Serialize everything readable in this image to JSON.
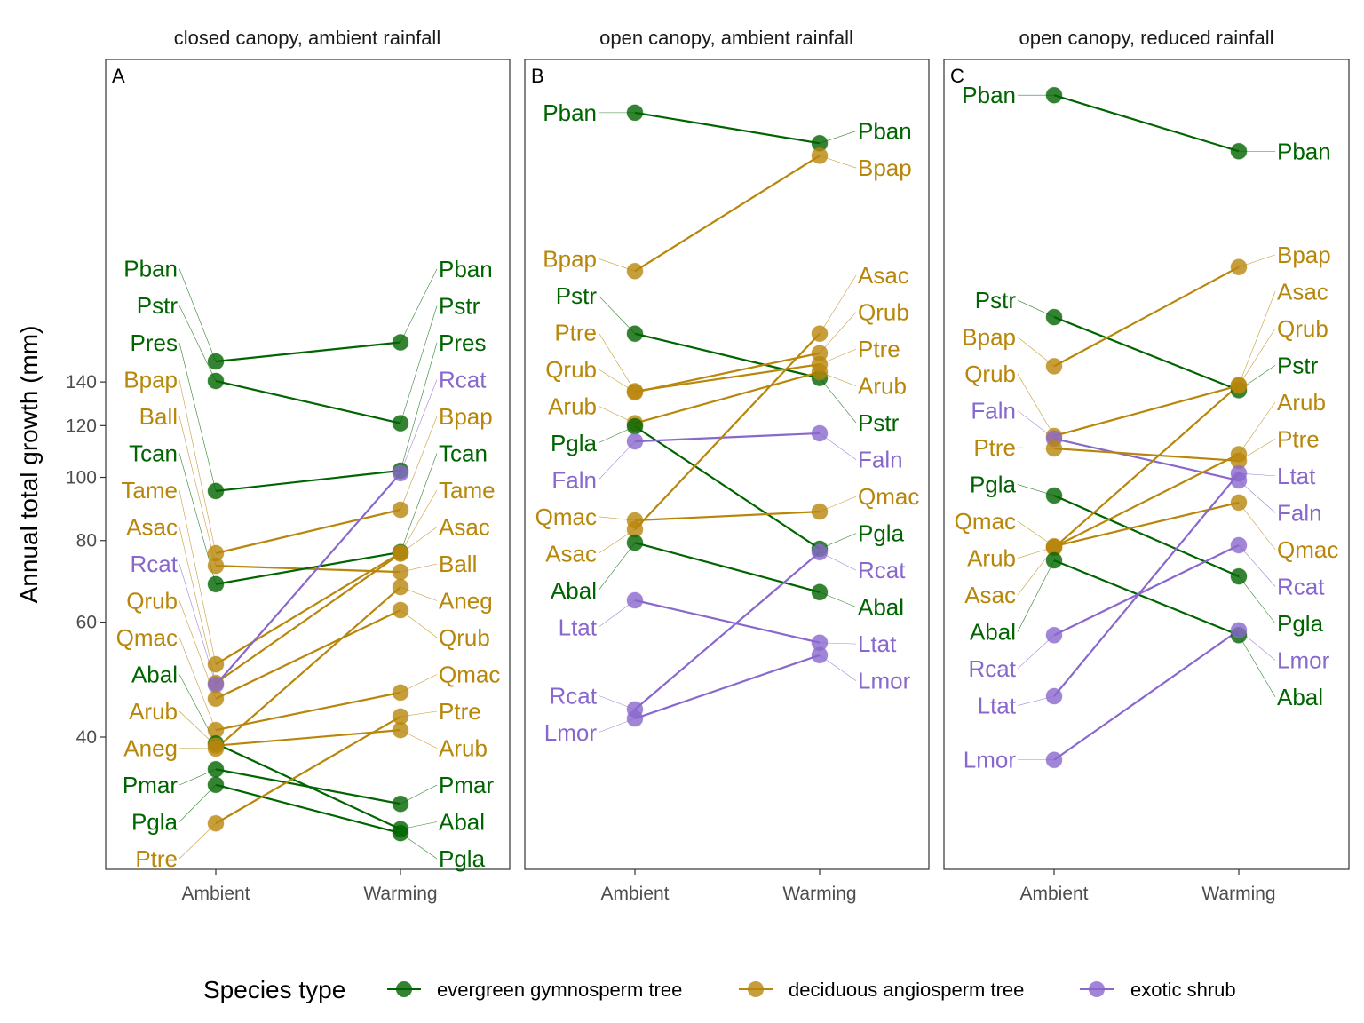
{
  "chart_data": {
    "type": "line",
    "subtype": "slopegraph",
    "ylabel": "Annual total growth (mm)",
    "yscale": "log",
    "yticks": [
      40,
      60,
      80,
      100,
      120,
      140
    ],
    "x": [
      "Ambient",
      "Warming"
    ],
    "grid": false,
    "legend": {
      "title": "Species type",
      "placement": "bottom",
      "entries": [
        {
          "key": "evergreen",
          "label": "evergreen gymnosperm tree",
          "color": "#006400"
        },
        {
          "key": "deciduous",
          "label": "deciduous angiosperm tree",
          "color": "#B8860B"
        },
        {
          "key": "shrub",
          "label": "exotic shrub",
          "color": "#8968CD"
        }
      ]
    },
    "panels": [
      {
        "tag": "A",
        "title": "closed canopy, ambient rainfall",
        "series": [
          {
            "name": "Pban",
            "type": "evergreen",
            "values": [
              150.5,
              161
            ]
          },
          {
            "name": "Pstr",
            "type": "evergreen",
            "values": [
              140.5,
              121
            ]
          },
          {
            "name": "Pres",
            "type": "evergreen",
            "values": [
              95.3,
              102.4
            ]
          },
          {
            "name": "Bpap",
            "type": "deciduous",
            "values": [
              76.5,
              89.2
            ]
          },
          {
            "name": "Ball",
            "type": "deciduous",
            "values": [
              73.2,
              71.6
            ]
          },
          {
            "name": "Tcan",
            "type": "evergreen",
            "values": [
              68.6,
              76.8
            ]
          },
          {
            "name": "Tame",
            "type": "deciduous",
            "values": [
              51.7,
              76.6
            ]
          },
          {
            "name": "Asac",
            "type": "deciduous",
            "values": [
              48.4,
              76.4
            ]
          },
          {
            "name": "Rcat",
            "type": "shrub",
            "values": [
              48.1,
              101.5
            ]
          },
          {
            "name": "Qrub",
            "type": "deciduous",
            "values": [
              45.8,
              62.6
            ]
          },
          {
            "name": "Qmac",
            "type": "deciduous",
            "values": [
              41.0,
              46.8
            ]
          },
          {
            "name": "Abal",
            "type": "evergreen",
            "values": [
              39.1,
              28.9
            ]
          },
          {
            "name": "Arub",
            "type": "deciduous",
            "values": [
              38.8,
              41.0
            ]
          },
          {
            "name": "Aneg",
            "type": "deciduous",
            "values": [
              38.4,
              67.9
            ]
          },
          {
            "name": "Pmar",
            "type": "evergreen",
            "values": [
              35.7,
              31.6
            ]
          },
          {
            "name": "Pgla",
            "type": "evergreen",
            "values": [
              33.8,
              28.5
            ]
          },
          {
            "name": "Ptre",
            "type": "deciduous",
            "values": [
              29.5,
              43.0
            ]
          }
        ]
      },
      {
        "tag": "B",
        "title": "open canopy, ambient rainfall",
        "series": [
          {
            "name": "Pban",
            "type": "evergreen",
            "values": [
              362,
              325
            ]
          },
          {
            "name": "Bpap",
            "type": "deciduous",
            "values": [
              207,
              311
            ]
          },
          {
            "name": "Pstr",
            "type": "evergreen",
            "values": [
              166,
              142
            ]
          },
          {
            "name": "Ptre",
            "type": "deciduous",
            "values": [
              135.5,
              149
            ]
          },
          {
            "name": "Qrub",
            "type": "deciduous",
            "values": [
              135,
              155
            ]
          },
          {
            "name": "Arub",
            "type": "deciduous",
            "values": [
              121,
              145
            ]
          },
          {
            "name": "Pgla",
            "type": "evergreen",
            "values": [
              119.7,
              77.7
            ]
          },
          {
            "name": "Faln",
            "type": "shrub",
            "values": [
              113.5,
              116.8
            ]
          },
          {
            "name": "Qmac",
            "type": "deciduous",
            "values": [
              85.9,
              88.6
            ]
          },
          {
            "name": "Asac",
            "type": "deciduous",
            "values": [
              83.2,
              166
            ]
          },
          {
            "name": "Abal",
            "type": "evergreen",
            "values": [
              79.4,
              66.7
            ]
          },
          {
            "name": "Ltat",
            "type": "shrub",
            "values": [
              64.8,
              55.8
            ]
          },
          {
            "name": "Rcat",
            "type": "shrub",
            "values": [
              44.1,
              76.8
            ]
          },
          {
            "name": "Lmor",
            "type": "shrub",
            "values": [
              42.7,
              53.4
            ]
          }
        ]
      },
      {
        "tag": "C",
        "title": "open canopy, reduced rainfall",
        "series": [
          {
            "name": "Pban",
            "type": "evergreen",
            "values": [
              385,
              316
            ]
          },
          {
            "name": "Pstr",
            "type": "evergreen",
            "values": [
              176,
              136
            ]
          },
          {
            "name": "Bpap",
            "type": "deciduous",
            "values": [
              148,
              210
            ]
          },
          {
            "name": "Qrub",
            "type": "deciduous",
            "values": [
              115.7,
              138.2
            ]
          },
          {
            "name": "Faln",
            "type": "shrub",
            "values": [
              114.6,
              98.9
            ]
          },
          {
            "name": "Ptre",
            "type": "deciduous",
            "values": [
              110.7,
              106
            ]
          },
          {
            "name": "Pgla",
            "type": "evergreen",
            "values": [
              93.8,
              70.5
            ]
          },
          {
            "name": "Qmac",
            "type": "deciduous",
            "values": [
              78.4,
              91.5
            ]
          },
          {
            "name": "Arub",
            "type": "deciduous",
            "values": [
              78.2,
              108.5
            ]
          },
          {
            "name": "Asac",
            "type": "deciduous",
            "values": [
              78.0,
              138.5
            ]
          },
          {
            "name": "Abal",
            "type": "evergreen",
            "values": [
              74.6,
              57.3
            ]
          },
          {
            "name": "Rcat",
            "type": "shrub",
            "values": [
              57.3,
              78.7
            ]
          },
          {
            "name": "Ltat",
            "type": "shrub",
            "values": [
              46.2,
              101.4
            ]
          },
          {
            "name": "Lmor",
            "type": "shrub",
            "values": [
              36.9,
              58.3
            ]
          }
        ]
      }
    ]
  }
}
